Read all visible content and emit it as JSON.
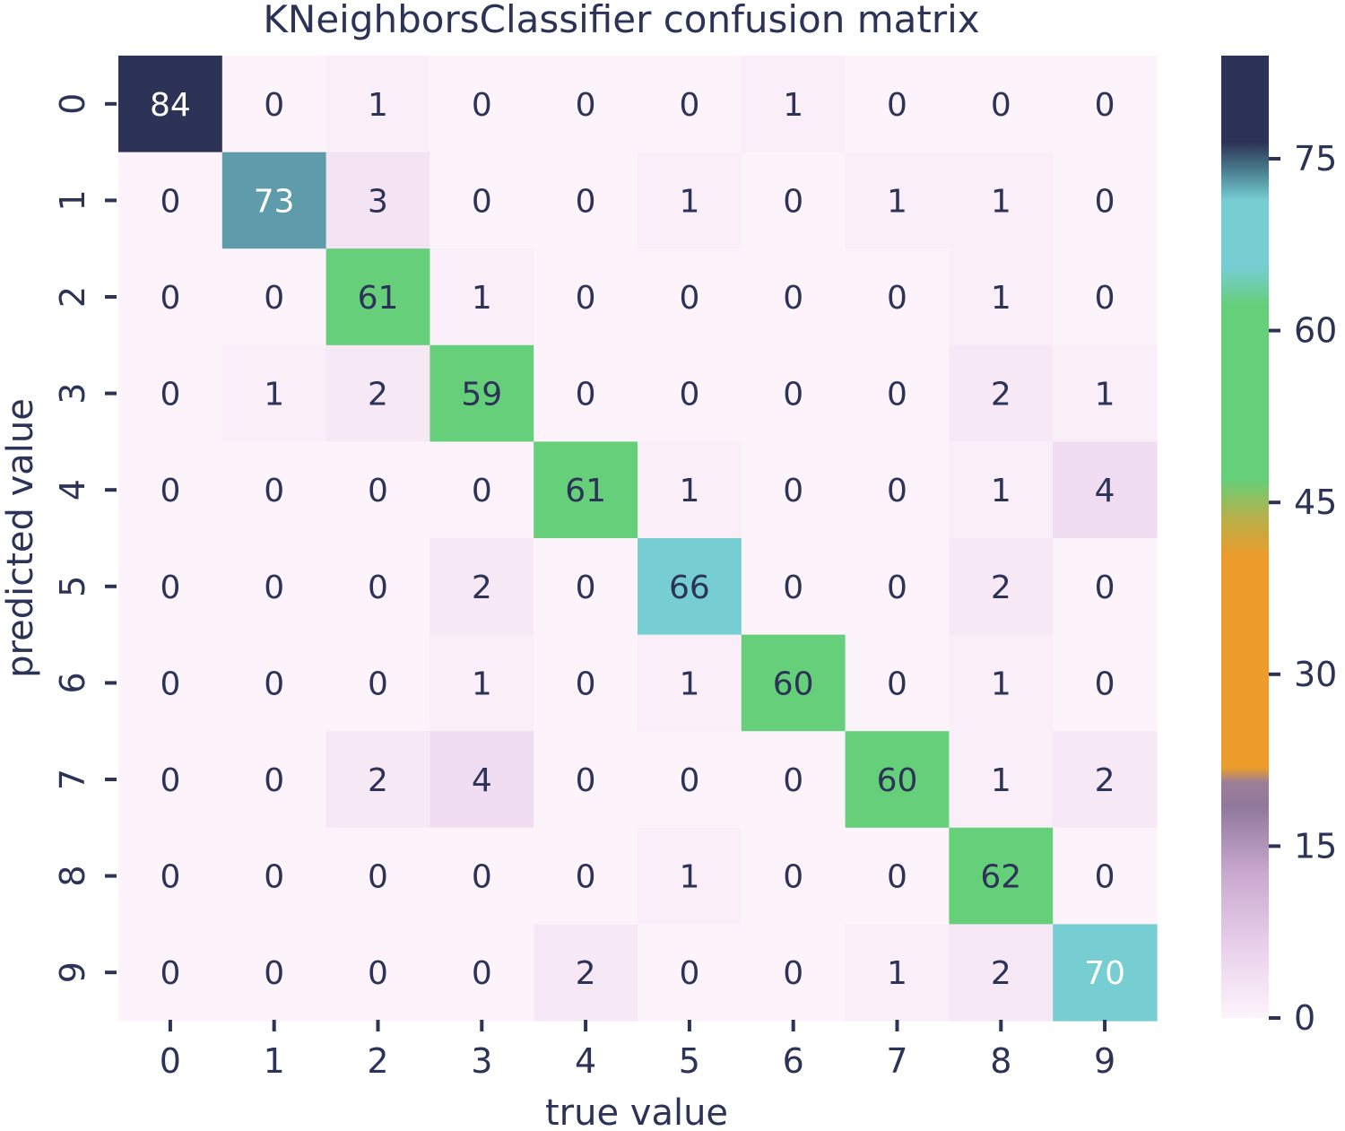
{
  "chart_data": {
    "type": "heatmap",
    "title": "KNeighborsClassifier confusion matrix",
    "xlabel": "true value",
    "ylabel": "predicted value",
    "x_categories": [
      "0",
      "1",
      "2",
      "3",
      "4",
      "5",
      "6",
      "7",
      "8",
      "9"
    ],
    "y_categories": [
      "0",
      "1",
      "2",
      "3",
      "4",
      "5",
      "6",
      "7",
      "8",
      "9"
    ],
    "values": [
      [
        84,
        0,
        1,
        0,
        0,
        0,
        1,
        0,
        0,
        0
      ],
      [
        0,
        73,
        3,
        0,
        0,
        1,
        0,
        1,
        1,
        0
      ],
      [
        0,
        0,
        61,
        1,
        0,
        0,
        0,
        0,
        1,
        0
      ],
      [
        0,
        1,
        2,
        59,
        0,
        0,
        0,
        0,
        2,
        1
      ],
      [
        0,
        0,
        0,
        0,
        61,
        1,
        0,
        0,
        1,
        4
      ],
      [
        0,
        0,
        0,
        2,
        0,
        66,
        0,
        0,
        2,
        0
      ],
      [
        0,
        0,
        0,
        1,
        0,
        1,
        60,
        0,
        1,
        0
      ],
      [
        0,
        0,
        2,
        4,
        0,
        0,
        0,
        60,
        1,
        2
      ],
      [
        0,
        0,
        0,
        0,
        0,
        1,
        0,
        0,
        62,
        0
      ],
      [
        0,
        0,
        0,
        0,
        2,
        0,
        0,
        1,
        2,
        70
      ]
    ],
    "colorbar": {
      "min": 0,
      "max": 84,
      "ticks": [
        0,
        15,
        30,
        45,
        60,
        75
      ],
      "colors": {
        "lowest": "#fdf4fb",
        "low": "#ead2ec",
        "mauve": "#8f789b",
        "orange": "#eb9c2b",
        "green": "#65cf79",
        "cyan": "#76cdd2",
        "navy": "#2c3356"
      }
    }
  }
}
